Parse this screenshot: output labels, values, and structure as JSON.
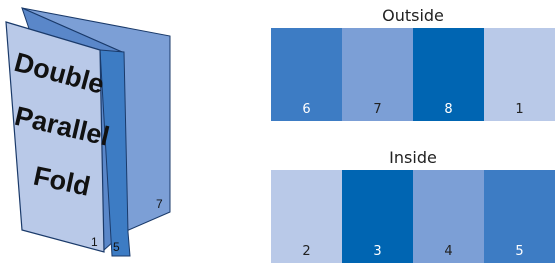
{
  "illustration": {
    "title_lines": [
      "Double",
      "Parallel",
      "Fold"
    ],
    "page_numbers": [
      "1",
      "5",
      "7"
    ]
  },
  "panels": [
    {
      "title": "Outside",
      "items": [
        {
          "label": "6",
          "color": "#3d7cc4"
        },
        {
          "label": "7",
          "color": "#7c9fd6"
        },
        {
          "label": "8",
          "color": "#0065b2"
        },
        {
          "label": "1",
          "color": "#b9c9e8"
        }
      ]
    },
    {
      "title": "Inside",
      "items": [
        {
          "label": "2",
          "color": "#b9c9e8"
        },
        {
          "label": "3",
          "color": "#0065b2"
        },
        {
          "label": "4",
          "color": "#7c9fd6"
        },
        {
          "label": "5",
          "color": "#3d7cc4"
        }
      ]
    }
  ]
}
